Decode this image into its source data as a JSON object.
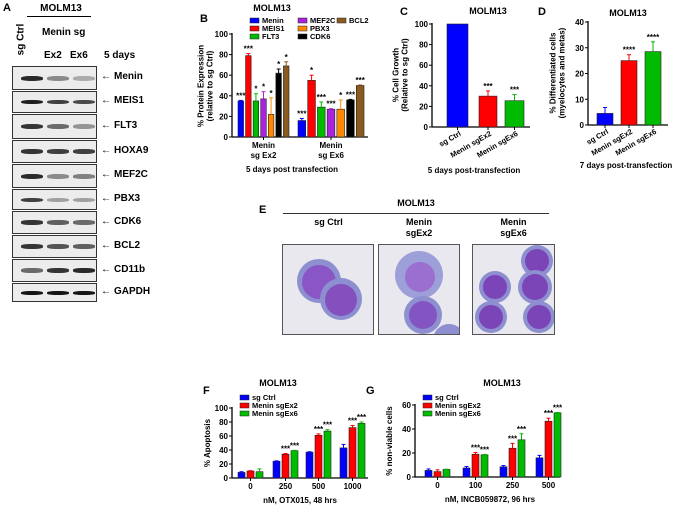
{
  "panel_a": {
    "letter": "A",
    "title": "MOLM13",
    "col_ctrl": "sg Ctrl",
    "group_label": "Menin sg",
    "col_ex2": "Ex2",
    "col_ex6": "Ex6",
    "timepoint": "5 days",
    "blots": [
      {
        "label": "Menin",
        "intensity": [
          0.9,
          0.45,
          0.3
        ]
      },
      {
        "label": "MEIS1",
        "intensity": [
          0.95,
          0.8,
          0.75
        ]
      },
      {
        "label": "FLT3",
        "intensity": [
          0.85,
          0.6,
          0.4
        ]
      },
      {
        "label": "HOXA9",
        "intensity": [
          0.85,
          0.8,
          0.8
        ]
      },
      {
        "label": "MEF2C",
        "intensity": [
          0.9,
          0.45,
          0.5
        ]
      },
      {
        "label": "PBX3",
        "intensity": [
          0.8,
          0.35,
          0.35
        ]
      },
      {
        "label": "CDK6",
        "intensity": [
          0.85,
          0.65,
          0.6
        ]
      },
      {
        "label": "BCL2",
        "intensity": [
          0.85,
          0.7,
          0.65
        ]
      },
      {
        "label": "CD11b",
        "intensity": [
          0.6,
          0.85,
          0.9
        ]
      },
      {
        "label": "GAPDH",
        "intensity": [
          1.0,
          1.0,
          1.0
        ]
      }
    ]
  },
  "panel_e": {
    "letter": "E",
    "title": "MOLM13",
    "columns": [
      {
        "line1": "",
        "line2": "sg Ctrl"
      },
      {
        "line1": "Menin",
        "line2": "sgEx2"
      },
      {
        "line1": "Menin",
        "line2": "sgEx6"
      }
    ]
  },
  "chart_data": [
    {
      "id": "B",
      "letter": "B",
      "type": "bar",
      "title": "MOLM13",
      "ylabel": [
        "% Protein Expression",
        "(relative to sg Ctrl)"
      ],
      "xlabel": "5 days post transfection",
      "ylim": [
        0,
        100
      ],
      "yticks": [
        0,
        20,
        40,
        60,
        80,
        100
      ],
      "categories": [
        [
          "Menin",
          "sg Ex2"
        ],
        [
          "Menin",
          "sg Ex6"
        ]
      ],
      "series": [
        {
          "name": "Menin",
          "color": "#0000ff",
          "values": [
            35,
            16
          ],
          "err": [
            0.5,
            2
          ],
          "sig": [
            "***",
            "***"
          ]
        },
        {
          "name": "MEIS1",
          "color": "#ff0000",
          "values": [
            79,
            55
          ],
          "err": [
            2,
            5
          ],
          "sig": [
            "***",
            "*"
          ]
        },
        {
          "name": "FLT3",
          "color": "#00bb00",
          "values": [
            35,
            29
          ],
          "err": [
            7,
            5
          ],
          "sig": [
            "*",
            "***"
          ]
        },
        {
          "name": "MEF2C",
          "color": "#aa22dd",
          "values": [
            37,
            27
          ],
          "err": [
            7,
            0.5
          ],
          "sig": [
            "*",
            "***"
          ]
        },
        {
          "name": "PBX3",
          "color": "#ff8800",
          "values": [
            22,
            27
          ],
          "err": [
            16,
            9
          ],
          "sig": [
            "*",
            "*"
          ]
        },
        {
          "name": "CDK6",
          "color": "#000000",
          "values": [
            62,
            36
          ],
          "err": [
            4,
            0.5
          ],
          "sig": [
            "*",
            "***"
          ]
        },
        {
          "name": "BCL2",
          "color": "#8b5a1e",
          "values": [
            69,
            50
          ],
          "err": [
            4,
            0.5
          ],
          "sig": [
            "*",
            "***"
          ]
        }
      ],
      "legend": "top"
    },
    {
      "id": "C",
      "letter": "C",
      "type": "bar",
      "title": "MOLM13",
      "ylabel": [
        "% Cell Growth",
        "(Relative to sg Ctrl)"
      ],
      "xlabel": "5 days post-transfection",
      "ylim": [
        0,
        100
      ],
      "yticks": [
        0,
        20,
        40,
        60,
        80,
        100
      ],
      "categories": [
        "sg Ctrl",
        "Menin sgEx2",
        "Menin sgEx6"
      ],
      "values": [
        100,
        30,
        25.5
      ],
      "err": [
        0,
        5,
        6
      ],
      "colors": [
        "#0000ff",
        "#ff0000",
        "#00bb00"
      ],
      "sig": [
        "",
        "***",
        "***"
      ]
    },
    {
      "id": "D",
      "letter": "D",
      "type": "bar",
      "title": "MOLM13",
      "ylabel": [
        "% Differentiated cells",
        "(myelocytes and metas)"
      ],
      "xlabel": "7 days post-transfection",
      "ylim": [
        0,
        40
      ],
      "yticks": [
        0,
        10,
        20,
        30,
        40
      ],
      "categories": [
        "sg Ctrl",
        "Menin sgEx2",
        "Menin sgEx6"
      ],
      "values": [
        4.5,
        25,
        28.5
      ],
      "err": [
        2.3,
        2.3,
        3.8
      ],
      "colors": [
        "#0000ff",
        "#ff0000",
        "#00bb00"
      ],
      "sig": [
        "",
        "****",
        "****"
      ]
    },
    {
      "id": "F",
      "letter": "F",
      "type": "bar",
      "title": "MOLM13",
      "ylabel": [
        "% Apoptosis"
      ],
      "xlabel": "nM, OTX015, 48 hrs",
      "ylim": [
        0,
        100
      ],
      "yticks": [
        0,
        20,
        40,
        60,
        80,
        100
      ],
      "categories": [
        "0",
        "250",
        "500",
        "1000"
      ],
      "series": [
        {
          "name": "sg Ctrl",
          "color": "#0000ff",
          "values": [
            8,
            24,
            37,
            43
          ],
          "err": [
            1,
            0.5,
            0.5,
            5
          ],
          "sig": [
            "",
            "",
            "",
            ""
          ]
        },
        {
          "name": "Menin sgEx2",
          "color": "#ff0000",
          "values": [
            10,
            34,
            61,
            72
          ],
          "err": [
            0.5,
            1,
            2,
            3
          ],
          "sig": [
            "",
            "***",
            "***",
            "***"
          ]
        },
        {
          "name": "Menin sgEx6",
          "color": "#00bb00",
          "values": [
            9,
            39,
            67,
            78
          ],
          "err": [
            4,
            0.5,
            2,
            2
          ],
          "sig": [
            "",
            "***",
            "***",
            "***"
          ]
        }
      ],
      "legend": "top-left"
    },
    {
      "id": "G",
      "letter": "G",
      "type": "bar",
      "title": "MOLM13",
      "ylabel": [
        "% non-viable cells"
      ],
      "xlabel": "nM, INCB059872, 96 hrs",
      "ylim": [
        0,
        60
      ],
      "yticks": [
        0,
        20,
        40,
        60
      ],
      "categories": [
        "0",
        "100",
        "250",
        "500"
      ],
      "series": [
        {
          "name": "sg Ctrl",
          "color": "#0000ff",
          "values": [
            5.5,
            7.5,
            8.5,
            16
          ],
          "err": [
            1.2,
            1.2,
            1,
            2
          ],
          "sig": [
            "",
            "",
            "",
            ""
          ]
        },
        {
          "name": "Menin sgEx2",
          "color": "#ff0000",
          "values": [
            4.5,
            19,
            24,
            46.5
          ],
          "err": [
            1.5,
            1.5,
            4,
            2.5
          ],
          "sig": [
            "",
            "***",
            "***",
            "***"
          ]
        },
        {
          "name": "Menin sgEx6",
          "color": "#00bb00",
          "values": [
            6.3,
            18.5,
            31,
            53.5
          ],
          "err": [
            0.2,
            0.3,
            5,
            0.3
          ],
          "sig": [
            "",
            "***",
            "***",
            "***"
          ]
        }
      ],
      "legend": "top-left"
    }
  ]
}
